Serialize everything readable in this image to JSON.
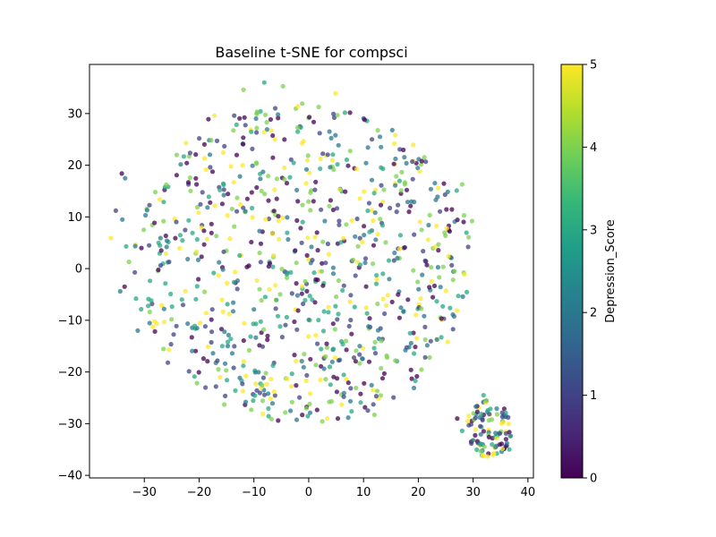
{
  "chart_data": {
    "type": "scatter",
    "title": "Baseline t-SNE for compsci",
    "xlabel": "",
    "ylabel": "",
    "xlim": [
      -40,
      41
    ],
    "ylim": [
      -40.5,
      39.5
    ],
    "xticks": [
      -30,
      -20,
      -10,
      0,
      10,
      20,
      30,
      40
    ],
    "yticks": [
      -40,
      -30,
      -20,
      -10,
      0,
      10,
      20,
      30
    ],
    "grid": false,
    "colorbar": {
      "label": "Depression_Score",
      "range": [
        0,
        5
      ],
      "ticks": [
        0,
        1,
        2,
        3,
        4,
        5
      ],
      "colormap": "viridis",
      "colormap_stops": [
        "#440154",
        "#482878",
        "#3e4989",
        "#31688e",
        "#26828e",
        "#1f9e89",
        "#35b779",
        "#6ece58",
        "#b5de2b",
        "#fde725"
      ]
    },
    "point_alpha": 0.75,
    "points_description": "approximately 900 points: main cloud centered near (0, 0) spanning x -36..30, y -28..36; small cluster near (33, -31)",
    "points": [
      {
        "x": -34.1,
        "y": 18.4,
        "c": 0
      },
      {
        "x": -33.5,
        "y": 17.5,
        "c": 2
      },
      {
        "x": -35.2,
        "y": 11.2,
        "c": 1
      },
      {
        "x": -34.0,
        "y": 9.5,
        "c": 2
      },
      {
        "x": -36.1,
        "y": 5.9,
        "c": 5
      },
      {
        "x": -33.3,
        "y": 4.3,
        "c": 3
      },
      {
        "x": -32.8,
        "y": 1.3,
        "c": 4
      },
      {
        "x": -34.4,
        "y": -4.4,
        "c": 2
      },
      {
        "x": -33.6,
        "y": -3.5,
        "c": 0
      },
      {
        "x": -31.5,
        "y": -5.8,
        "c": 3
      },
      {
        "x": -31.2,
        "y": -12.0,
        "c": 2
      },
      {
        "x": -30.1,
        "y": 7.5,
        "c": 4
      },
      {
        "x": -29.5,
        "y": 11.3,
        "c": 2
      },
      {
        "x": -28.0,
        "y": 14.8,
        "c": 4
      },
      {
        "x": -26.9,
        "y": 3.5,
        "c": 0
      },
      {
        "x": -26.4,
        "y": -7.8,
        "c": 2
      },
      {
        "x": -25.5,
        "y": -15.7,
        "c": 5
      },
      {
        "x": -25.7,
        "y": -18.2,
        "c": 1
      },
      {
        "x": -24.1,
        "y": 22.0,
        "c": 4
      },
      {
        "x": -22.4,
        "y": 24.3,
        "c": 5
      },
      {
        "x": -21.2,
        "y": 6.9,
        "c": 3
      },
      {
        "x": -20.1,
        "y": 10.8,
        "c": 5
      },
      {
        "x": -19.0,
        "y": -4.5,
        "c": 4
      },
      {
        "x": -19.2,
        "y": -17.4,
        "c": 0
      },
      {
        "x": -18.3,
        "y": 28.9,
        "c": 0
      },
      {
        "x": -17.2,
        "y": 29.6,
        "c": 5
      },
      {
        "x": -16.2,
        "y": 15.2,
        "c": 3
      },
      {
        "x": -15.4,
        "y": -26.3,
        "c": 4
      },
      {
        "x": -14.4,
        "y": 5.8,
        "c": 5
      },
      {
        "x": -13.6,
        "y": 29.6,
        "c": 1
      },
      {
        "x": -12.1,
        "y": -22.3,
        "c": 1
      },
      {
        "x": -11.9,
        "y": 34.6,
        "c": 4
      },
      {
        "x": -11.2,
        "y": 13.5,
        "c": 0
      },
      {
        "x": -10.0,
        "y": -7.9,
        "c": 2
      },
      {
        "x": -8.4,
        "y": -15.1,
        "c": 1
      },
      {
        "x": -8.1,
        "y": 36.0,
        "c": 3
      },
      {
        "x": -7.4,
        "y": 17.9,
        "c": 4
      },
      {
        "x": -7.1,
        "y": 1.0,
        "c": 0
      },
      {
        "x": -6.3,
        "y": -23.8,
        "c": 5
      },
      {
        "x": -5.6,
        "y": 29.8,
        "c": 2
      },
      {
        "x": -4.7,
        "y": 35.3,
        "c": 4
      },
      {
        "x": -4.0,
        "y": -9.4,
        "c": 3
      },
      {
        "x": -3.2,
        "y": 21.1,
        "c": 1
      },
      {
        "x": -2.6,
        "y": -16.7,
        "c": 0
      },
      {
        "x": -2.0,
        "y": 31.4,
        "c": 5
      },
      {
        "x": -1.1,
        "y": 9.0,
        "c": 3
      },
      {
        "x": -0.4,
        "y": -27.0,
        "c": 4
      },
      {
        "x": 0.1,
        "y": 29.3,
        "c": 0
      },
      {
        "x": 0.5,
        "y": 4.2,
        "c": 2
      },
      {
        "x": 1.3,
        "y": -12.9,
        "c": 5
      },
      {
        "x": 2.0,
        "y": 26.2,
        "c": 1
      },
      {
        "x": 2.6,
        "y": -3.3,
        "c": 0
      },
      {
        "x": 3.1,
        "y": -21.4,
        "c": 4
      },
      {
        "x": 4.0,
        "y": 13.2,
        "c": 0
      },
      {
        "x": 4.9,
        "y": 33.9,
        "c": 5
      },
      {
        "x": 5.4,
        "y": -8.8,
        "c": 3
      },
      {
        "x": 6.4,
        "y": -24.8,
        "c": 1
      },
      {
        "x": 7.2,
        "y": 19.9,
        "c": 0
      },
      {
        "x": 8.1,
        "y": 1.7,
        "c": 4
      },
      {
        "x": 9.3,
        "y": -15.0,
        "c": 2
      },
      {
        "x": 10.2,
        "y": 28.8,
        "c": 0
      },
      {
        "x": 10.1,
        "y": -22.2,
        "c": 0
      },
      {
        "x": 11.1,
        "y": 7.1,
        "c": 3
      },
      {
        "x": 12.0,
        "y": -28.3,
        "c": 4
      },
      {
        "x": 13.0,
        "y": 25.5,
        "c": 2
      },
      {
        "x": 13.6,
        "y": -5.9,
        "c": 5
      },
      {
        "x": 14.8,
        "y": 11.7,
        "c": 1
      },
      {
        "x": 15.8,
        "y": -17.8,
        "c": 4
      },
      {
        "x": 16.6,
        "y": 3.8,
        "c": 5
      },
      {
        "x": 17.9,
        "y": 15.2,
        "c": 0
      },
      {
        "x": 18.5,
        "y": -12.5,
        "c": 3
      },
      {
        "x": 19.2,
        "y": -23.1,
        "c": 2
      },
      {
        "x": 20.6,
        "y": 7.5,
        "c": 4
      },
      {
        "x": 21.1,
        "y": 21.5,
        "c": 4
      },
      {
        "x": 22.0,
        "y": -3.6,
        "c": 0
      },
      {
        "x": 23.2,
        "y": 13.3,
        "c": 2
      },
      {
        "x": 24.2,
        "y": -13.3,
        "c": 3
      },
      {
        "x": 25.2,
        "y": 7.8,
        "c": 5
      },
      {
        "x": 26.3,
        "y": -8.9,
        "c": 2
      },
      {
        "x": 27.0,
        "y": 15.1,
        "c": 3
      },
      {
        "x": 28.0,
        "y": 16.3,
        "c": 4
      },
      {
        "x": 29.1,
        "y": 4.2,
        "c": 1
      },
      {
        "x": 29.8,
        "y": 9.2,
        "c": 4
      },
      {
        "x": 27.3,
        "y": -5.3,
        "c": 3
      },
      {
        "x": 28.4,
        "y": -1.1,
        "c": 5
      },
      {
        "x": 27.1,
        "y": -29.0,
        "c": 0
      },
      {
        "x": 28.0,
        "y": -31.4,
        "c": 3
      },
      {
        "x": 29.2,
        "y": -28.5,
        "c": 5
      },
      {
        "x": 30.0,
        "y": -33.2,
        "c": 2
      },
      {
        "x": 31.3,
        "y": -30.5,
        "c": 1
      },
      {
        "x": 31.9,
        "y": -24.5,
        "c": 3
      },
      {
        "x": 32.4,
        "y": -25.5,
        "c": 4
      },
      {
        "x": 32.9,
        "y": -32.6,
        "c": 0
      },
      {
        "x": 33.4,
        "y": -29.2,
        "c": 4
      },
      {
        "x": 33.8,
        "y": -35.8,
        "c": 5
      },
      {
        "x": 34.3,
        "y": -27.1,
        "c": 2
      },
      {
        "x": 34.9,
        "y": -31.9,
        "c": 1
      },
      {
        "x": 35.5,
        "y": -29.7,
        "c": 5
      },
      {
        "x": 36.4,
        "y": -28.8,
        "c": 1
      },
      {
        "x": 36.6,
        "y": -35.0,
        "c": 3
      },
      {
        "x": 35.2,
        "y": -33.9,
        "c": 0
      },
      {
        "x": 31.8,
        "y": -36.3,
        "c": 5
      },
      {
        "x": 30.5,
        "y": -26.7,
        "c": 2
      }
    ],
    "background_cluster_main": {
      "center": [
        -1,
        1
      ],
      "radius_x": 31,
      "radius_y": 31,
      "count": 800
    },
    "background_cluster_small": {
      "center": [
        33,
        -31
      ],
      "radius_x": 4.2,
      "radius_y": 5.5,
      "count": 90
    }
  }
}
